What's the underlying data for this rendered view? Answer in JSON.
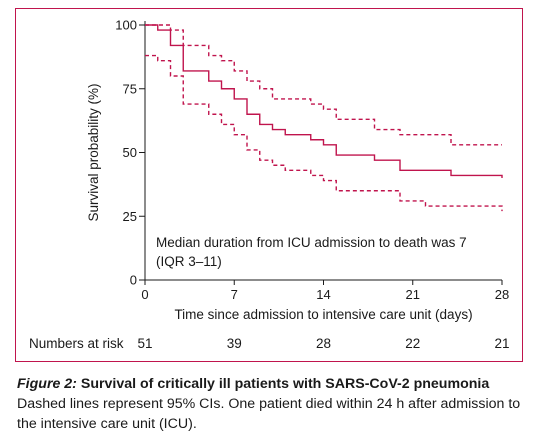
{
  "chart_data": {
    "type": "line",
    "subtype": "kaplan-meier step",
    "xlabel": "Time since admission to intensive care unit (days)",
    "ylabel": "Survival probability (%)",
    "xlim": [
      0,
      28
    ],
    "ylim": [
      0,
      100
    ],
    "x_ticks": [
      0,
      7,
      14,
      21,
      28
    ],
    "y_ticks": [
      0,
      25,
      50,
      75,
      100
    ],
    "annotation": [
      "Median duration from ICU admission to death was 7",
      "(IQR 3–11)"
    ],
    "risk_table": {
      "label": "Numbers at risk",
      "times": [
        0,
        7,
        14,
        21,
        28
      ],
      "values": [
        51,
        39,
        28,
        22,
        21
      ]
    },
    "series": [
      {
        "style": "solid",
        "x": [
          0,
          1,
          2,
          3,
          5,
          6,
          7,
          8,
          9,
          10,
          11,
          13,
          14,
          15,
          17,
          18,
          20,
          22,
          24,
          28
        ],
        "y": [
          100,
          98,
          92,
          82,
          78,
          75,
          71,
          65,
          61,
          59,
          57,
          55,
          53,
          49,
          49,
          47,
          43,
          43,
          41,
          40
        ]
      },
      {
        "style": "dashed",
        "x": [
          0,
          1,
          2,
          3,
          5,
          6,
          7,
          8,
          9,
          10,
          11,
          13,
          14,
          15,
          18,
          20,
          22,
          24,
          28
        ],
        "y": [
          100,
          100,
          98,
          92,
          88,
          86,
          82,
          78,
          75,
          71,
          71,
          69,
          67,
          63,
          59,
          57,
          57,
          53,
          53
        ]
      },
      {
        "style": "dashed",
        "x": [
          0,
          1,
          2,
          3,
          5,
          6,
          7,
          8,
          9,
          10,
          11,
          13,
          14,
          15,
          18,
          20,
          22,
          24,
          28
        ],
        "y": [
          88,
          86,
          80,
          69,
          65,
          61,
          57,
          51,
          47,
          45,
          43,
          41,
          39,
          35,
          35,
          31,
          29,
          29,
          27
        ]
      }
    ],
    "line_color": "#c0144d",
    "grid": false
  },
  "caption": {
    "figure_label": "Figure 2:",
    "title": " Survival of critically ill patients with SARS-CoV-2 pneumonia",
    "body": "Dashed lines represent 95% CIs. One patient died within 24 h after admission to the intensive care unit (ICU)."
  }
}
